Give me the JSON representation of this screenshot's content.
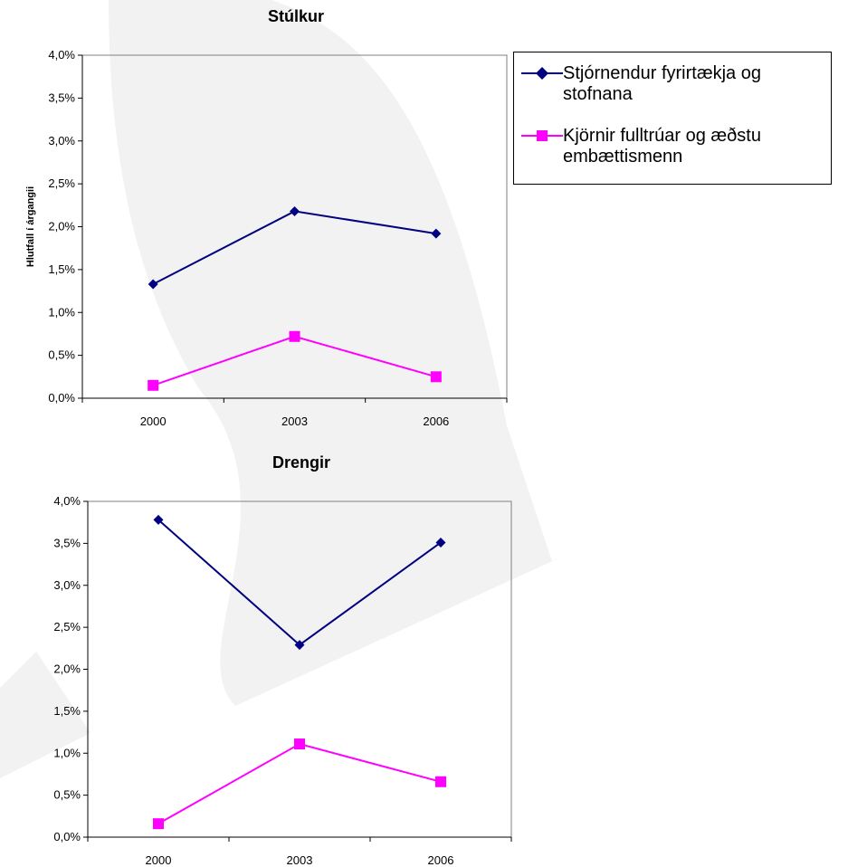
{
  "colors": {
    "series_a": "#000080",
    "series_b": "#ff00ff",
    "watermark": "#f0f0f0"
  },
  "legend": {
    "items": [
      {
        "label": "Stjórnendur fyrirtækja og stofnana",
        "marker": "diamond",
        "color": "#000080"
      },
      {
        "label": "Kjörnir fulltrúar og æðstu embættismenn",
        "marker": "square",
        "color": "#ff00ff"
      }
    ]
  },
  "chart_data": [
    {
      "type": "line",
      "title": "Stúlkur",
      "xlabel": "",
      "ylabel": "Hlutfall í árgangii",
      "categories": [
        "2000",
        "2003",
        "2006"
      ],
      "ylim": [
        0,
        0.04
      ],
      "yticks": [
        "0,0%",
        "0,5%",
        "1,0%",
        "1,5%",
        "2,0%",
        "2,5%",
        "3,0%",
        "3,5%",
        "4,0%"
      ],
      "grid": false,
      "series": [
        {
          "name": "Stjórnendur fyrirtækja og stofnana",
          "marker": "diamond",
          "color": "#000080",
          "values": [
            0.0133,
            0.0218,
            0.0192
          ]
        },
        {
          "name": "Kjörnir fulltrúar og æðstu embættismenn",
          "marker": "square",
          "color": "#ff00ff",
          "values": [
            0.0015,
            0.0072,
            0.0025
          ]
        }
      ]
    },
    {
      "type": "line",
      "title": "Drengir",
      "xlabel": "",
      "ylabel": "",
      "categories": [
        "2000",
        "2003",
        "2006"
      ],
      "ylim": [
        0,
        0.04
      ],
      "yticks": [
        "0,0%",
        "0,5%",
        "1,0%",
        "1,5%",
        "2,0%",
        "2,5%",
        "3,0%",
        "3,5%",
        "4,0%"
      ],
      "grid": false,
      "series": [
        {
          "name": "Stjórnendur fyrirtækja og stofnana",
          "marker": "diamond",
          "color": "#000080",
          "values": [
            0.0378,
            0.0229,
            0.0351
          ]
        },
        {
          "name": "Kjörnir fulltrúar og æðstu embættismenn",
          "marker": "square",
          "color": "#ff00ff",
          "values": [
            0.0016,
            0.0111,
            0.0066
          ]
        }
      ]
    }
  ]
}
